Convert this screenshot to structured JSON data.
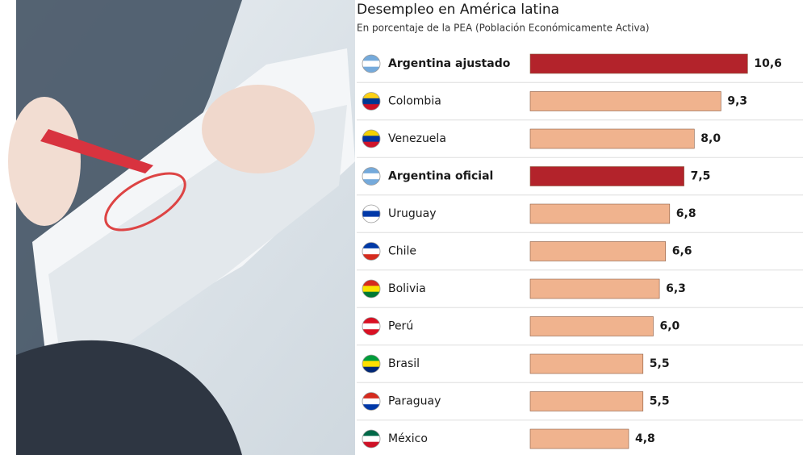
{
  "chart_data": {
    "type": "bar",
    "orientation": "horizontal",
    "title": "Desempleo en América latina",
    "subtitle": "En porcentaje de la PEA (Población Económicamente Activa)",
    "categories": [
      "Argentina ajustado",
      "Colombia",
      "Venezuela",
      "Argentina oficial",
      "Uruguay",
      "Chile",
      "Bolivia",
      "Perú",
      "Brasil",
      "Paraguay",
      "México"
    ],
    "values": [
      10.6,
      9.3,
      8.0,
      7.5,
      6.8,
      6.6,
      6.3,
      6.0,
      5.5,
      5.5,
      4.8
    ],
    "value_labels": [
      "10,6",
      "9,3",
      "8,0",
      "7,5",
      "6,8",
      "6,6",
      "6,3",
      "6,0",
      "5,5",
      "5,5",
      "4,8"
    ],
    "colors": [
      "#b3232b",
      "#f0b38e",
      "#f0b38e",
      "#b3232b",
      "#f0b38e",
      "#f0b38e",
      "#f0b38e",
      "#f0b38e",
      "#f0b38e",
      "#f0b38e",
      "#f0b38e"
    ],
    "label_bold": [
      true,
      false,
      false,
      true,
      false,
      false,
      false,
      false,
      false,
      false,
      false
    ],
    "xlim": [
      0,
      13.3
    ]
  }
}
